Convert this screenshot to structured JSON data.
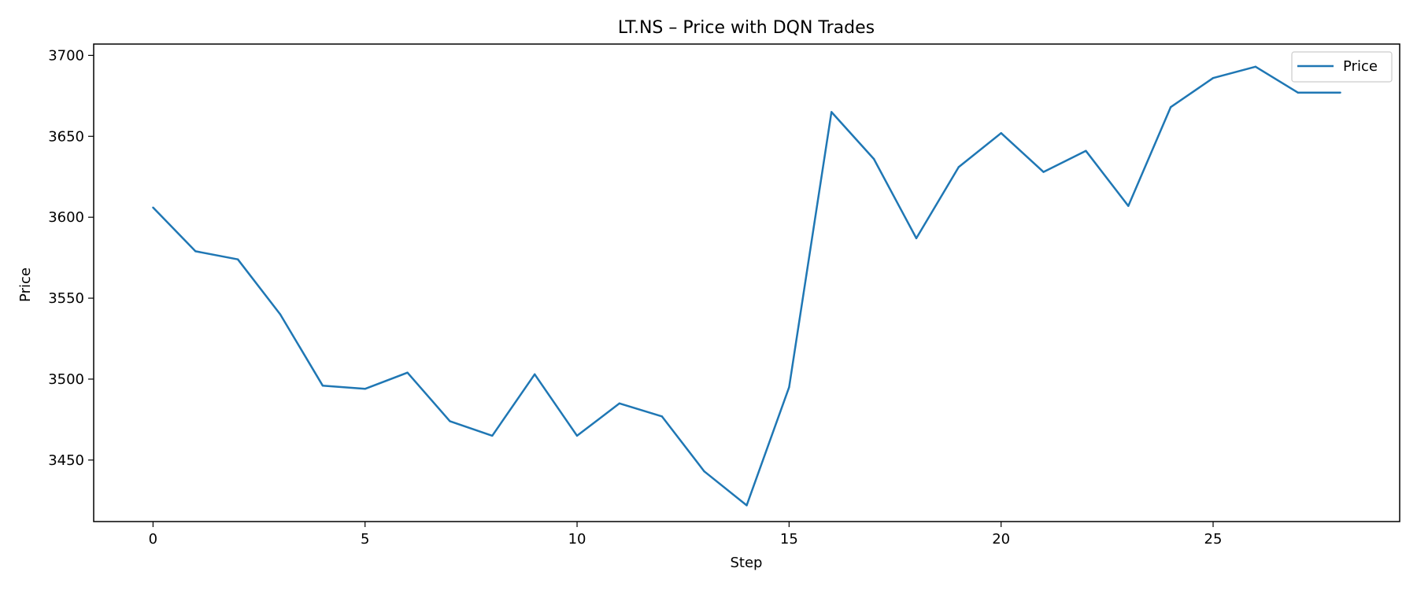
{
  "chart_data": {
    "type": "line",
    "title": "LT.NS – Price with DQN Trades",
    "xlabel": "Step",
    "ylabel": "Price",
    "xlim": [
      -1.4,
      29.4
    ],
    "ylim": [
      3412,
      3707
    ],
    "xticks": [
      0,
      5,
      10,
      15,
      20,
      25
    ],
    "yticks": [
      3450,
      3500,
      3550,
      3600,
      3650,
      3700
    ],
    "grid": false,
    "legend": {
      "position": "top-right",
      "entries": [
        "Price"
      ]
    },
    "series": [
      {
        "name": "Price",
        "color": "#1f77b4",
        "x": [
          0,
          1,
          2,
          3,
          4,
          5,
          6,
          7,
          8,
          9,
          10,
          11,
          12,
          13,
          14,
          15,
          16,
          17,
          18,
          19,
          20,
          21,
          22,
          23,
          24,
          25,
          26,
          27,
          28
        ],
        "values": [
          3606,
          3579,
          3574,
          3540,
          3496,
          3494,
          3504,
          3474,
          3465,
          3503,
          3465,
          3485,
          3477,
          3443,
          3422,
          3495,
          3665,
          3636,
          3587,
          3631,
          3652,
          3628,
          3641,
          3607,
          3668,
          3686,
          3693,
          3677,
          3677
        ]
      }
    ]
  }
}
